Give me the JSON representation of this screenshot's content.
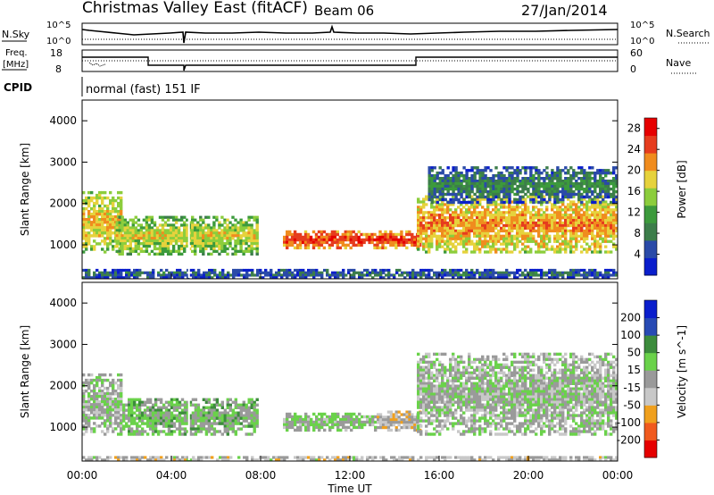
{
  "header": {
    "station": "Christmas Valley East (fitACF)",
    "beam": "Beam 06",
    "date": "27/Jan/2014"
  },
  "top_panels": {
    "nsky_label": "N.Sky",
    "nsky_ticks": [
      "10^5",
      "10^0"
    ],
    "nsearch_label": "N.Search",
    "nsearch_ticks": [
      "10^5",
      "10^0"
    ],
    "freq_label_1": "Freq.",
    "freq_label_2": "[MHz]",
    "freq_ticks": [
      "18",
      "8"
    ],
    "nave_label": "Nave",
    "nave_ticks": [
      "60",
      "0"
    ],
    "cpid_label": "CPID",
    "cpid_value": "normal (fast) 151 IF"
  },
  "colors": {
    "power_scale": [
      "#0a1ecc",
      "#2a4aa8",
      "#3c7d4a",
      "#3c9a3c",
      "#8ccd3c",
      "#e6d23c",
      "#f08c1e",
      "#e63c1e",
      "#e60000"
    ],
    "velocity_scale": [
      "#e60000",
      "#f05a1e",
      "#f0a01e",
      "#c8c8c8",
      "#9a9a9a",
      "#6ad24a",
      "#3c8c3c",
      "#284ab4",
      "#0a1ecc"
    ]
  },
  "chart_data": [
    {
      "type": "heatmap",
      "title": "Power",
      "ylabel": "Slant Range [km]",
      "xlabel": "Time UT",
      "x_ticks": [
        "00:00",
        "04:00",
        "08:00",
        "12:00",
        "16:00",
        "20:00",
        "00:00"
      ],
      "y_ticks": [
        "1000",
        "2000",
        "3000",
        "4000"
      ],
      "ylim": [
        180,
        4500
      ],
      "colorbar_label": "Power [dB]",
      "colorbar_ticks": [
        "4",
        "8",
        "12",
        "16",
        "20",
        "24",
        "28"
      ],
      "colorbar_range": [
        0,
        30
      ],
      "bands": [
        {
          "t0": 0.0,
          "t1": 1.8,
          "r0": 800,
          "r1": 2300,
          "level": 20
        },
        {
          "t0": 1.5,
          "t1": 7.9,
          "r0": 750,
          "r1": 1700,
          "level": 18
        },
        {
          "t0": 9.0,
          "t1": 15.2,
          "r0": 900,
          "r1": 1350,
          "level": 26
        },
        {
          "t0": 15.0,
          "t1": 24.0,
          "r0": 800,
          "r1": 2200,
          "level": 22
        },
        {
          "t0": 15.5,
          "t1": 24.0,
          "r0": 2000,
          "r1": 2900,
          "level": 10
        },
        {
          "t0": 0.0,
          "t1": 24.0,
          "r0": 180,
          "r1": 420,
          "level": 8
        }
      ]
    },
    {
      "type": "heatmap",
      "title": "Velocity",
      "ylabel": "Slant Range [km]",
      "xlabel": "Time UT",
      "x_ticks": [
        "00:00",
        "04:00",
        "08:00",
        "12:00",
        "16:00",
        "20:00",
        "00:00"
      ],
      "y_ticks": [
        "1000",
        "2000",
        "3000",
        "4000"
      ],
      "ylim": [
        180,
        4500
      ],
      "colorbar_label": "Velocity [m s^-1]",
      "colorbar_ticks": [
        "200",
        "100",
        "50",
        "15",
        "-15",
        "-50",
        "-100",
        "-200"
      ],
      "colorbar_range": [
        -250,
        250
      ],
      "bands": [
        {
          "t0": 0.0,
          "t1": 1.8,
          "r0": 800,
          "r1": 2300,
          "level": 0
        },
        {
          "t0": 1.8,
          "t1": 7.9,
          "r0": 800,
          "r1": 1700,
          "level": 40
        },
        {
          "t0": 9.0,
          "t1": 13.2,
          "r0": 900,
          "r1": 1350,
          "level": 20
        },
        {
          "t0": 13.2,
          "t1": 15.2,
          "r0": 900,
          "r1": 1400,
          "level": -40
        },
        {
          "t0": 15.0,
          "t1": 24.0,
          "r0": 800,
          "r1": 2800,
          "level": 0
        },
        {
          "t0": 0.0,
          "t1": 24.0,
          "r0": 180,
          "r1": 300,
          "level": -30
        }
      ]
    }
  ]
}
